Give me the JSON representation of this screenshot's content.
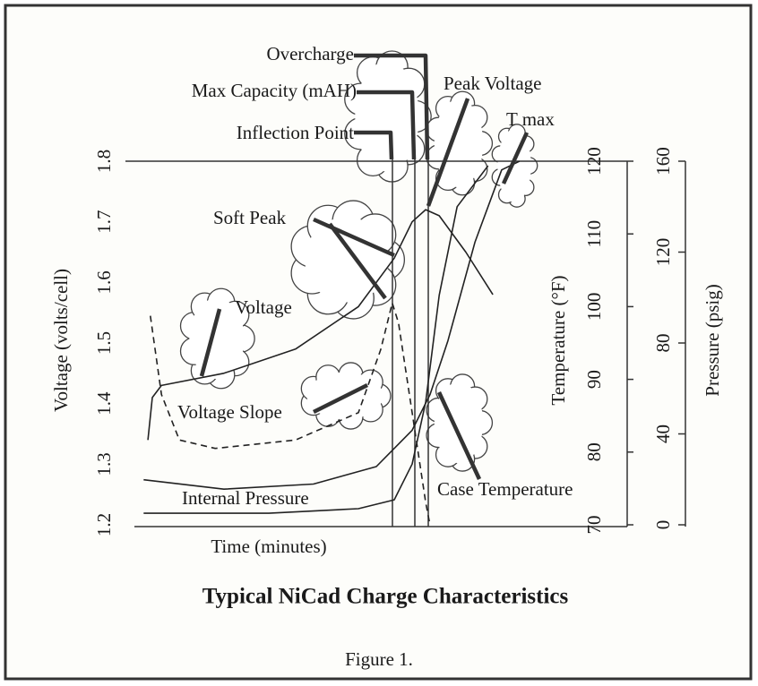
{
  "chart_data": {
    "type": "line",
    "title": "Typical NiCad Charge Characteristics",
    "caption": "Figure 1.",
    "xlabel": "Time (minutes)",
    "ylabel": "Voltage (volts/cell)",
    "y2label": "Temperature (°F)",
    "y3label": "Pressure (psig)",
    "xlim": [
      0,
      100
    ],
    "ylim": [
      1.2,
      1.8
    ],
    "yticks": [
      1.2,
      1.3,
      1.4,
      1.5,
      1.6,
      1.7,
      1.8
    ],
    "y2lim": [
      70,
      120
    ],
    "y2ticks": [
      70,
      80,
      90,
      100,
      110,
      120
    ],
    "y3lim": [
      0,
      160
    ],
    "y3ticks": [
      0,
      40,
      80,
      120,
      160
    ],
    "annotations": [
      "Overcharge",
      "Max Capacity (mAH)",
      "Inflection Point",
      "Peak Voltage",
      "T max",
      "Soft Peak",
      "Voltage",
      "Voltage Slope",
      "Internal Pressure",
      "Case Temperature"
    ],
    "series": [
      {
        "name": "Voltage",
        "color": "#222222",
        "dash": false,
        "axis": "y",
        "x": [
          2.8,
          3.7,
          5.6,
          18.5,
          33.3,
          46.3,
          53.7,
          57.4,
          60.2,
          63.0,
          68.5,
          74.1
        ],
        "values": [
          1.34,
          1.41,
          1.43,
          1.45,
          1.49,
          1.56,
          1.64,
          1.7,
          1.72,
          1.71,
          1.65,
          1.58
        ]
      },
      {
        "name": "Voltage Slope",
        "color": "#222222",
        "dash": true,
        "axis": "y",
        "x": [
          3.3,
          5.6,
          9.3,
          16.7,
          33.3,
          46.3,
          50.9,
          53.3,
          54.6,
          57.4,
          60.2,
          61.1
        ],
        "values": [
          1.545,
          1.415,
          1.34,
          1.326,
          1.34,
          1.385,
          1.489,
          1.566,
          1.533,
          1.385,
          1.237,
          1.2
        ]
      },
      {
        "name": "Internal Pressure",
        "color": "#222222",
        "dash": false,
        "axis": "y3",
        "x": [
          1.9,
          27.8,
          46.3,
          53.7,
          57.4,
          60.2,
          63.0,
          66.7,
          73.1
        ],
        "values": [
          5.1,
          5.1,
          7.1,
          11,
          26.7,
          54,
          101,
          140,
          158
        ]
      },
      {
        "name": "Case Temperature",
        "color": "#222222",
        "dash": false,
        "axis": "y2",
        "x": [
          1.9,
          18.5,
          37,
          50,
          57.4,
          61.1,
          64.8,
          70.4,
          75.9,
          79.6
        ],
        "values": [
          76.2,
          74.9,
          75.6,
          78.0,
          83.0,
          87.9,
          95.3,
          108.9,
          118.8,
          120
        ]
      }
    ]
  }
}
